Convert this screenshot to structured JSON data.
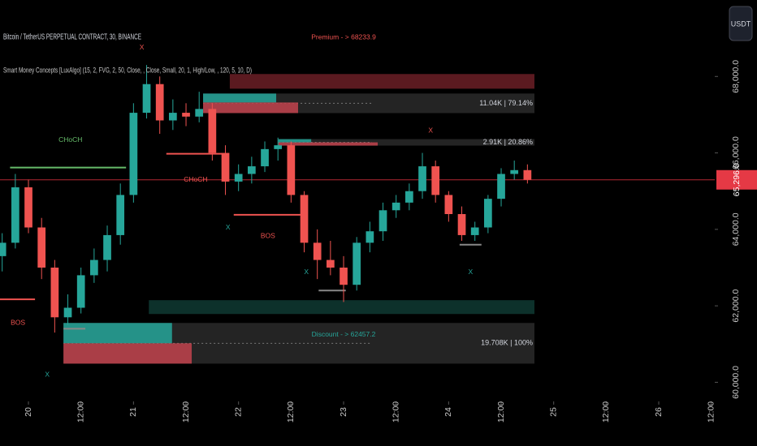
{
  "chart_data": {
    "type": "candlestick",
    "title": "Bitcoin / TetherUS PERPETUAL CONTRACT, 30, BINANCE",
    "subtitle": "Smart Money Concepts [LuxAlgo] (15, 2, FVG, 2, 50, Close, , Close, Small, 20, 1, High/Low, , 120, 5, 10, D)",
    "currency": "USDT",
    "up_color": "#26a69a",
    "down_color": "#ef5350",
    "x": [
      -6,
      -3,
      0,
      3,
      6,
      9,
      12,
      15,
      18,
      21,
      24,
      27,
      30,
      33,
      36,
      39,
      42,
      45,
      48,
      51,
      54,
      57,
      60,
      63,
      66,
      69,
      72,
      75,
      78,
      81,
      84,
      87,
      90,
      93,
      96,
      99,
      102,
      105,
      108,
      111,
      114
    ],
    "open": [
      63300,
      63650,
      65100,
      64050,
      63000,
      61700,
      61950,
      62800,
      63200,
      63850,
      64900,
      67050,
      67800,
      66850,
      67050,
      66950,
      67150,
      66000,
      65250,
      65450,
      65650,
      66100,
      66200,
      64900,
      63650,
      63200,
      63000,
      62550,
      63650,
      63950,
      64500,
      64700,
      65000,
      65650,
      64900,
      64400,
      63850,
      64050,
      64800,
      65450,
      65550
    ],
    "high": [
      63900,
      65450,
      65300,
      64300,
      63200,
      62300,
      63000,
      63500,
      64100,
      65200,
      67300,
      68300,
      68000,
      67400,
      67300,
      67600,
      67300,
      66200,
      65700,
      65900,
      66300,
      66400,
      66300,
      65000,
      64000,
      63700,
      63300,
      63800,
      64200,
      64700,
      64900,
      65200,
      66000,
      65800,
      65000,
      64600,
      64200,
      64900,
      65600,
      65800,
      65700
    ],
    "low": [
      62900,
      63500,
      63900,
      62700,
      61300,
      61500,
      61800,
      62600,
      62900,
      63600,
      64700,
      66900,
      66500,
      66600,
      66700,
      66800,
      65800,
      64900,
      65000,
      65200,
      65500,
      65800,
      64700,
      63400,
      62700,
      62800,
      62100,
      62400,
      63400,
      63700,
      64300,
      64500,
      64800,
      64700,
      64200,
      63700,
      63700,
      63900,
      64600,
      65300,
      65200
    ],
    "close": [
      63650,
      65100,
      64050,
      63000,
      61700,
      61950,
      62800,
      63200,
      63850,
      64900,
      67050,
      67800,
      66850,
      67050,
      66950,
      67150,
      66000,
      65250,
      65450,
      65650,
      66100,
      66200,
      64900,
      63650,
      63200,
      63000,
      62550,
      63650,
      63950,
      64500,
      64700,
      65000,
      65650,
      64900,
      64400,
      63850,
      64050,
      64800,
      65450,
      65550,
      65296
    ],
    "xlim": [
      -6.5,
      156.8
    ],
    "ylim": [
      59500,
      70000
    ],
    "xticks": [
      {
        "value": 0,
        "label": "20"
      },
      {
        "value": 12,
        "label": "12:00"
      },
      {
        "value": 24,
        "label": "21"
      },
      {
        "value": 36,
        "label": "12:00"
      },
      {
        "value": 48,
        "label": "22"
      },
      {
        "value": 60,
        "label": "12:00"
      },
      {
        "value": 72,
        "label": "23"
      },
      {
        "value": 84,
        "label": "12:00"
      },
      {
        "value": 96,
        "label": "24"
      },
      {
        "value": 108,
        "label": "12:00"
      },
      {
        "value": 120,
        "label": "25"
      },
      {
        "value": 132,
        "label": "12:00"
      },
      {
        "value": 144,
        "label": "26"
      },
      {
        "value": 156,
        "label": "12:00"
      }
    ],
    "yticks": [
      {
        "value": 68000,
        "label": "68,000.0"
      },
      {
        "value": 66000,
        "label": "66,000.0"
      },
      {
        "value": 64000,
        "label": "64,000.0"
      },
      {
        "value": 62000,
        "label": "62,000.0"
      },
      {
        "value": 60000,
        "label": "60,000.0"
      }
    ],
    "last_price": {
      "value": 65296,
      "label": "65,296.0"
    },
    "zones": [
      {
        "x": [
          46,
          115.6
        ],
        "y": [
          67680,
          68064
        ],
        "color": "#6b1e26"
      },
      {
        "x": [
          39.9,
          115.6
        ],
        "y": [
          67042,
          67553
        ],
        "color": "#2a2a2a",
        "label": "11.04K | 79.14%"
      },
      {
        "x": [
          39.9,
          56.6
        ],
        "y": [
          67319,
          67553
        ],
        "color": "#26a69a"
      },
      {
        "x": [
          39.9,
          61.6
        ],
        "y": [
          67042,
          67319
        ],
        "color": "#c2434d"
      },
      {
        "x": [
          57.1,
          115.6
        ],
        "y": [
          66191,
          66361
        ],
        "color": "#2a2a2a",
        "label": "2.91K | 20.86%"
      },
      {
        "x": [
          57.1,
          64.6
        ],
        "y": [
          66276,
          66361
        ],
        "color": "#26a69a"
      },
      {
        "x": [
          57.1,
          79.8
        ],
        "y": [
          66191,
          66276
        ],
        "color": "#c2434d"
      },
      {
        "x": [
          27.5,
          115.6
        ],
        "y": [
          61786,
          62148
        ],
        "color": "#0f3a33"
      },
      {
        "x": [
          8,
          115.6
        ],
        "y": [
          60488,
          61552
        ],
        "color": "#2a2a2a",
        "label": "19.708K | 100%"
      },
      {
        "x": [
          8,
          32.8
        ],
        "y": [
          61020,
          61552
        ],
        "color": "#26a69a"
      },
      {
        "x": [
          8,
          37.3
        ],
        "y": [
          60488,
          61020
        ],
        "color": "#c2434d"
      }
    ],
    "levels": [
      {
        "x": [
          -4.2,
          22.3
        ],
        "y": 65617,
        "color": "#66bb6a"
      },
      {
        "x": [
          -6.5,
          1.5
        ],
        "y": 62170,
        "color": "#ef5350"
      },
      {
        "x": [
          31.5,
          44.2
        ],
        "y": 65978,
        "color": "#ef5350"
      },
      {
        "x": [
          46.9,
          62.2
        ],
        "y": 64382,
        "color": "#ef5350"
      },
      {
        "x": [
          8,
          13
        ],
        "y": 61400,
        "color": "#888888"
      },
      {
        "x": [
          66.3,
          72.5
        ],
        "y": 62400,
        "color": "#888888"
      },
      {
        "x": [
          98.5,
          103.5
        ],
        "y": 63600,
        "color": "#888888"
      }
    ],
    "annotations": [
      {
        "text": "Premium - > 68233.9",
        "x": 72,
        "y": 69020,
        "color": "#ef5350"
      },
      {
        "text": "Discount - > 62457.2",
        "x": 72,
        "y": 61250,
        "color": "#26a69a"
      },
      {
        "text": "CHoCH",
        "x": 9.6,
        "y": 66340,
        "color": "#66bb6a"
      },
      {
        "text": "CHoCH",
        "x": 38.2,
        "y": 65300,
        "color": "#ef5350"
      },
      {
        "text": "BOS",
        "x": 54.7,
        "y": 63820,
        "color": "#ef5350"
      },
      {
        "text": "BOS",
        "x": -2.4,
        "y": 61550,
        "color": "#ef5350"
      },
      {
        "text": "X",
        "x": 25.9,
        "y": 68750,
        "color": "#ef5350"
      },
      {
        "text": "X",
        "x": 91.9,
        "y": 66580,
        "color": "#ef5350"
      },
      {
        "text": "X",
        "x": 45.6,
        "y": 64040,
        "color": "#26a69a"
      },
      {
        "text": "X",
        "x": 63.5,
        "y": 62880,
        "color": "#26a69a"
      },
      {
        "text": "X",
        "x": 101,
        "y": 62880,
        "color": "#26a69a"
      },
      {
        "text": "X",
        "x": 4.3,
        "y": 60200,
        "color": "#26a69a"
      }
    ]
  }
}
